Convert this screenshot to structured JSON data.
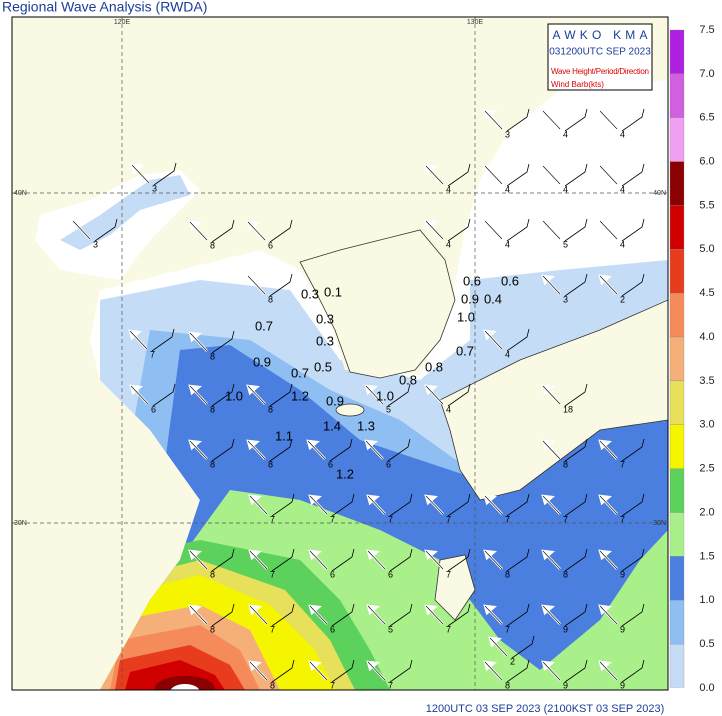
{
  "title": "Regional Wave Analysis (RWDA)",
  "header": {
    "lines": [
      "AWKO KMA",
      "031200UTC SEP 2023",
      "Wave Height/Period/Direction",
      "Wind Barb(kts)"
    ]
  },
  "grid_labels": {
    "lon": [
      "120E",
      "130E"
    ],
    "lat": [
      "40N",
      "30N"
    ]
  },
  "colorbar": {
    "labels": [
      "7.5",
      "7.0",
      "6.5",
      "6.0",
      "5.5",
      "5.0",
      "4.5",
      "4.0",
      "3.5",
      "3.0",
      "2.5",
      "2.0",
      "1.5",
      "1.0",
      "0.5",
      "0.0"
    ],
    "colors": [
      "#b020e0",
      "#d060e0",
      "#f0a0f0",
      "#8b0000",
      "#d10000",
      "#e83c1e",
      "#f58a5a",
      "#f5b07a",
      "#e6e05a",
      "#f5f500",
      "#5cd15c",
      "#aaf08a",
      "#4a7fe0",
      "#8fbef2",
      "#c5dcf7"
    ]
  },
  "wave_heights": [
    "0.6",
    "0.6",
    "0.9",
    "0.4",
    "1.0",
    "0.3",
    "0.1",
    "0.3",
    "0.7",
    "0.3",
    "0.9",
    "0.7",
    "0.5",
    "0.7",
    "0.8",
    "0.8",
    "1.0",
    "1.2",
    "0.9",
    "1.0",
    "1.1",
    "1.4",
    "1.3",
    "1.2"
  ],
  "periods": [
    "3",
    "3",
    "6",
    "8",
    "8",
    "7",
    "8",
    "6",
    "8",
    "8",
    "8",
    "8",
    "6",
    "6",
    "7",
    "7",
    "7",
    "7",
    "7",
    "7",
    "7",
    "8",
    "7",
    "6",
    "6",
    "7",
    "8",
    "8",
    "9",
    "8",
    "7",
    "6",
    "5",
    "7",
    "7",
    "9",
    "9",
    "8",
    "7",
    "7",
    "8",
    "9",
    "9",
    "3",
    "4",
    "4",
    "4",
    "4",
    "4",
    "4",
    "4",
    "4",
    "5",
    "4",
    "3",
    "2",
    "4",
    "4",
    "5",
    "18",
    "8",
    "7",
    "2"
  ],
  "footer": "1200UTC 03 SEP 2023 (2100KST 03 SEP 2023)"
}
